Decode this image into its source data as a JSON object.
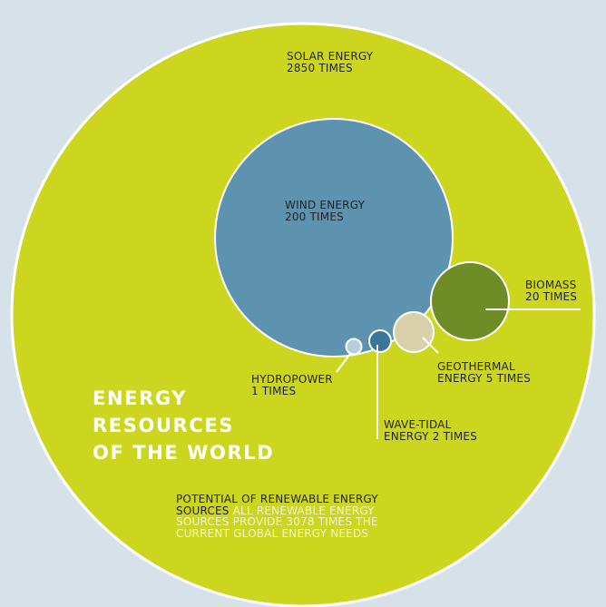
{
  "colors": {
    "background": "#d7e1ea",
    "solar": "#cdd61e",
    "wind": "#5e93af",
    "biomass": "#6e8d27",
    "geothermal": "#d8d0aa",
    "wave_tidal": "#3a7699",
    "hydropower": "#b6cede"
  },
  "title": [
    "ENERGY",
    "RESOURCES",
    "OF THE WORLD"
  ],
  "resources": {
    "solar": {
      "name": "SOLAR ENERGY",
      "value_text": "2850 TIMES",
      "value": 2850
    },
    "wind": {
      "name": "WIND ENERGY",
      "value_text": "200 TIMES",
      "value": 200
    },
    "biomass": {
      "name": "BIOMASS",
      "value_text": "20 TIMES",
      "value": 20
    },
    "geothermal": {
      "name": "GEOTHERMAL",
      "value_text": "ENERGY 5 TIMES",
      "value": 5
    },
    "wave_tidal": {
      "name": "WAVE-TIDAL",
      "value_text": "ENERGY 2 TIMES",
      "value": 2
    },
    "hydropower": {
      "name": "HYDROPOWER",
      "value_text": "1 TIMES",
      "value": 1
    }
  },
  "note": {
    "heading": "POTENTIAL OF RENEWABLE ENERGY SOURCES",
    "text": "ALL RENEWABLE ENERGY SOURCES PROVIDE 3078 TIMES THE CURRENT GLOBAL ENERGY NEEDS"
  }
}
